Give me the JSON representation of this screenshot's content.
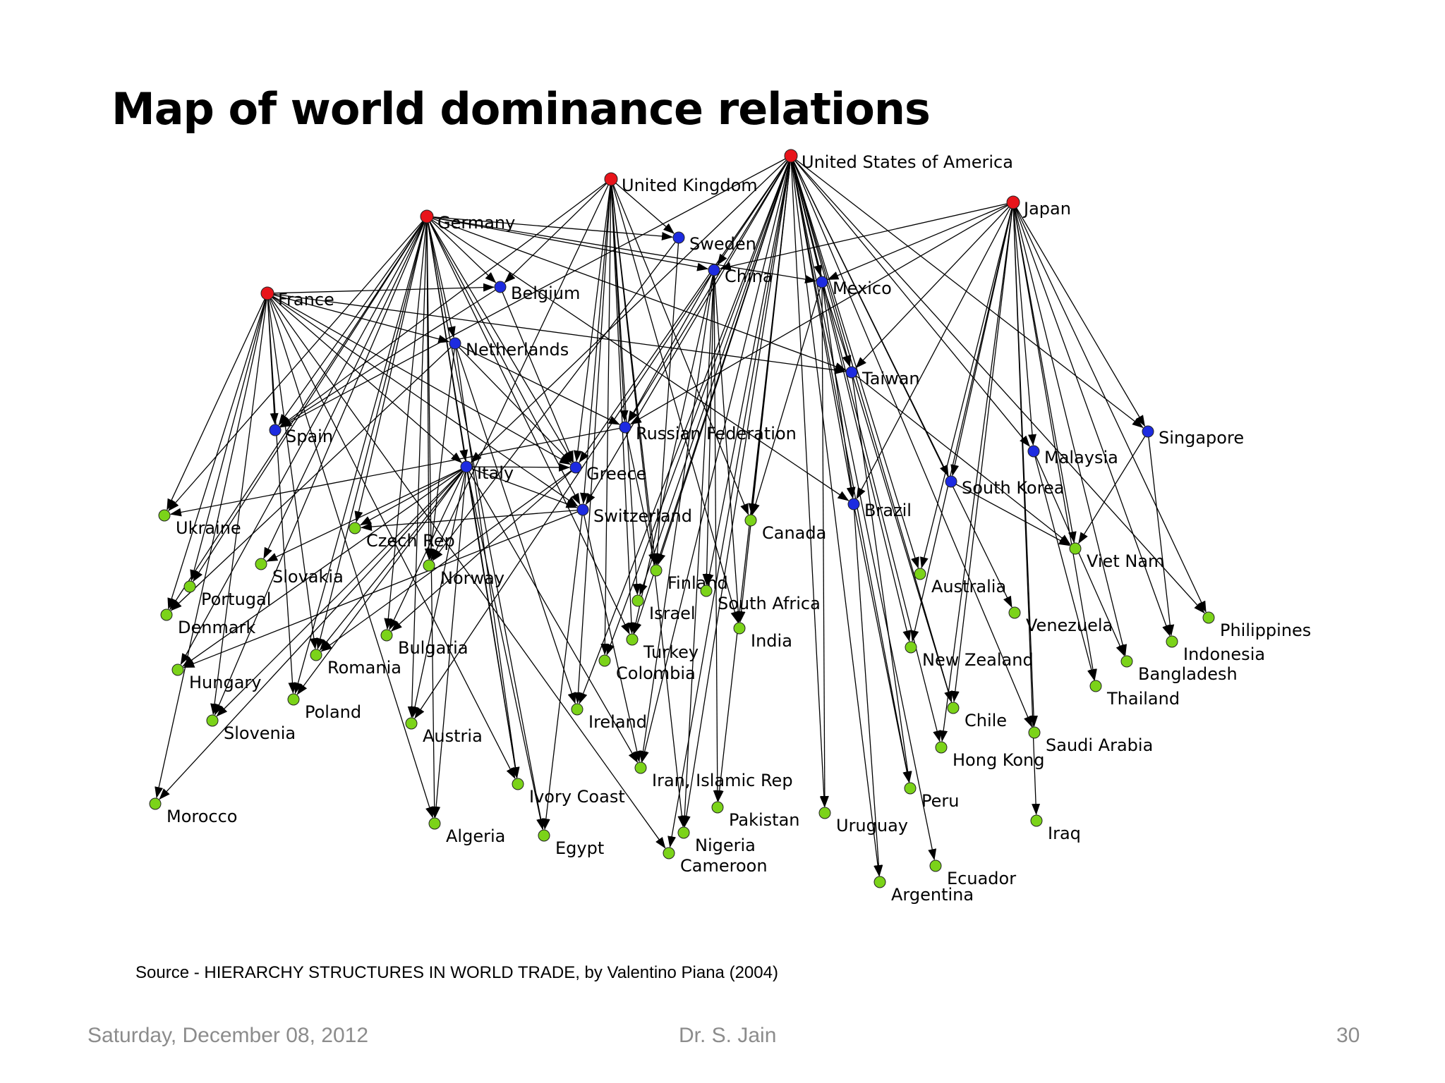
{
  "slide": {
    "title": "Map of world dominance relations",
    "source": "Source - HIERARCHY STRUCTURES IN WORLD TRADE, by Valentino Piana (2004)",
    "footer_date": "Saturday, December 08, 2012",
    "footer_author": "Dr. S. Jain",
    "footer_page": "30"
  },
  "colors": {
    "top_tier": "#e8141a",
    "middle_tier": "#1d2be0",
    "lower_tier": "#7bd319",
    "edge": "#000000"
  },
  "nodes": [
    {
      "id": "United States of America",
      "tier": "top"
    },
    {
      "id": "United Kingdom",
      "tier": "top"
    },
    {
      "id": "Germany",
      "tier": "top"
    },
    {
      "id": "Japan",
      "tier": "top"
    },
    {
      "id": "France",
      "tier": "top"
    },
    {
      "id": "Sweden",
      "tier": "middle"
    },
    {
      "id": "China",
      "tier": "middle"
    },
    {
      "id": "Mexico",
      "tier": "middle"
    },
    {
      "id": "Belgium",
      "tier": "middle"
    },
    {
      "id": "Netherlands",
      "tier": "middle"
    },
    {
      "id": "Taiwan",
      "tier": "middle"
    },
    {
      "id": "Spain",
      "tier": "middle"
    },
    {
      "id": "Russian Federation",
      "tier": "middle"
    },
    {
      "id": "Singapore",
      "tier": "middle"
    },
    {
      "id": "Malaysia",
      "tier": "middle"
    },
    {
      "id": "Italy",
      "tier": "middle"
    },
    {
      "id": "Greece",
      "tier": "middle"
    },
    {
      "id": "South Korea",
      "tier": "middle"
    },
    {
      "id": "Brazil",
      "tier": "middle"
    },
    {
      "id": "Switzerland",
      "tier": "middle"
    },
    {
      "id": "Ukraine",
      "tier": "lower"
    },
    {
      "id": "Czech Rep",
      "tier": "lower"
    },
    {
      "id": "Canada",
      "tier": "lower"
    },
    {
      "id": "Slovakia",
      "tier": "lower"
    },
    {
      "id": "Norway",
      "tier": "lower"
    },
    {
      "id": "Viet Nam",
      "tier": "lower"
    },
    {
      "id": "Portugal",
      "tier": "lower"
    },
    {
      "id": "Finland",
      "tier": "lower"
    },
    {
      "id": "Australia",
      "tier": "lower"
    },
    {
      "id": "Israel",
      "tier": "lower"
    },
    {
      "id": "South Africa",
      "tier": "lower"
    },
    {
      "id": "Denmark",
      "tier": "lower"
    },
    {
      "id": "Venezuela",
      "tier": "lower"
    },
    {
      "id": "Philippines",
      "tier": "lower"
    },
    {
      "id": "Bulgaria",
      "tier": "lower"
    },
    {
      "id": "India",
      "tier": "lower"
    },
    {
      "id": "Turkey",
      "tier": "lower"
    },
    {
      "id": "Indonesia",
      "tier": "lower"
    },
    {
      "id": "Romania",
      "tier": "lower"
    },
    {
      "id": "New Zealand",
      "tier": "lower"
    },
    {
      "id": "Colombia",
      "tier": "lower"
    },
    {
      "id": "Bangladesh",
      "tier": "lower"
    },
    {
      "id": "Hungary",
      "tier": "lower"
    },
    {
      "id": "Thailand",
      "tier": "lower"
    },
    {
      "id": "Poland",
      "tier": "lower"
    },
    {
      "id": "Chile",
      "tier": "lower"
    },
    {
      "id": "Ireland",
      "tier": "lower"
    },
    {
      "id": "Slovenia",
      "tier": "lower"
    },
    {
      "id": "Austria",
      "tier": "lower"
    },
    {
      "id": "Saudi Arabia",
      "tier": "lower"
    },
    {
      "id": "Hong Kong",
      "tier": "lower"
    },
    {
      "id": "Iran, Islamic Rep",
      "tier": "lower"
    },
    {
      "id": "Ivory Coast",
      "tier": "lower"
    },
    {
      "id": "Peru",
      "tier": "lower"
    },
    {
      "id": "Morocco",
      "tier": "lower"
    },
    {
      "id": "Pakistan",
      "tier": "lower"
    },
    {
      "id": "Uruguay",
      "tier": "lower"
    },
    {
      "id": "Iraq",
      "tier": "lower"
    },
    {
      "id": "Algeria",
      "tier": "lower"
    },
    {
      "id": "Egypt",
      "tier": "lower"
    },
    {
      "id": "Nigeria",
      "tier": "lower"
    },
    {
      "id": "Cameroon",
      "tier": "lower"
    },
    {
      "id": "Ecuador",
      "tier": "lower"
    },
    {
      "id": "Argentina",
      "tier": "lower"
    }
  ],
  "edges": [
    [
      "United States of America",
      "China"
    ],
    [
      "United States of America",
      "Mexico"
    ],
    [
      "United States of America",
      "Taiwan"
    ],
    [
      "United States of America",
      "Russian Federation"
    ],
    [
      "United States of America",
      "Greece"
    ],
    [
      "United States of America",
      "Switzerland"
    ],
    [
      "United States of America",
      "Brazil"
    ],
    [
      "United States of America",
      "South Korea"
    ],
    [
      "United States of America",
      "Malaysia"
    ],
    [
      "United States of America",
      "Singapore"
    ],
    [
      "United States of America",
      "Canada"
    ],
    [
      "United States of America",
      "Finland"
    ],
    [
      "United States of America",
      "Israel"
    ],
    [
      "United States of America",
      "Turkey"
    ],
    [
      "United States of America",
      "Colombia"
    ],
    [
      "United States of America",
      "Australia"
    ],
    [
      "United States of America",
      "New Zealand"
    ],
    [
      "United States of America",
      "Chile"
    ],
    [
      "United States of America",
      "Peru"
    ],
    [
      "United States of America",
      "Venezuela"
    ],
    [
      "United States of America",
      "Ireland"
    ],
    [
      "United States of America",
      "Uruguay"
    ],
    [
      "United States of America",
      "Argentina"
    ],
    [
      "United States of America",
      "Ecuador"
    ],
    [
      "United States of America",
      "Nigeria"
    ],
    [
      "United States of America",
      "Cameroon"
    ],
    [
      "United States of America",
      "Pakistan"
    ],
    [
      "United States of America",
      "Iran, Islamic Rep"
    ],
    [
      "United States of America",
      "Saudi Arabia"
    ],
    [
      "United States of America",
      "Hong Kong"
    ],
    [
      "United States of America",
      "South Africa"
    ],
    [
      "United States of America",
      "India"
    ],
    [
      "United States of America",
      "Philippines"
    ],
    [
      "United States of America",
      "Italy"
    ],
    [
      "United States of America",
      "Spain"
    ],
    [
      "United Kingdom",
      "Sweden"
    ],
    [
      "United Kingdom",
      "Belgium"
    ],
    [
      "United Kingdom",
      "Russian Federation"
    ],
    [
      "United Kingdom",
      "Greece"
    ],
    [
      "United Kingdom",
      "Switzerland"
    ],
    [
      "United Kingdom",
      "Finland"
    ],
    [
      "United Kingdom",
      "Israel"
    ],
    [
      "United Kingdom",
      "Ireland"
    ],
    [
      "United Kingdom",
      "Turkey"
    ],
    [
      "United Kingdom",
      "Colombia"
    ],
    [
      "United Kingdom",
      "Nigeria"
    ],
    [
      "United Kingdom",
      "Spain"
    ],
    [
      "United Kingdom",
      "Norway"
    ],
    [
      "United Kingdom",
      "Canada"
    ],
    [
      "United Kingdom",
      "India"
    ],
    [
      "Germany",
      "Sweden"
    ],
    [
      "Germany",
      "China"
    ],
    [
      "Germany",
      "Mexico"
    ],
    [
      "Germany",
      "Belgium"
    ],
    [
      "Germany",
      "Netherlands"
    ],
    [
      "Germany",
      "Spain"
    ],
    [
      "Germany",
      "Italy"
    ],
    [
      "Germany",
      "Greece"
    ],
    [
      "Germany",
      "Switzerland"
    ],
    [
      "Germany",
      "Czech Rep"
    ],
    [
      "Germany",
      "Slovakia"
    ],
    [
      "Germany",
      "Norway"
    ],
    [
      "Germany",
      "Portugal"
    ],
    [
      "Germany",
      "Denmark"
    ],
    [
      "Germany",
      "Bulgaria"
    ],
    [
      "Germany",
      "Romania"
    ],
    [
      "Germany",
      "Hungary"
    ],
    [
      "Germany",
      "Poland"
    ],
    [
      "Germany",
      "Slovenia"
    ],
    [
      "Germany",
      "Austria"
    ],
    [
      "Germany",
      "Algeria"
    ],
    [
      "Germany",
      "Egypt"
    ],
    [
      "Germany",
      "Ivory Coast"
    ],
    [
      "Germany",
      "Turkey"
    ],
    [
      "Germany",
      "Taiwan"
    ],
    [
      "Germany",
      "Ukraine"
    ],
    [
      "Germany",
      "Brazil"
    ],
    [
      "Japan",
      "China"
    ],
    [
      "Japan",
      "Mexico"
    ],
    [
      "Japan",
      "Taiwan"
    ],
    [
      "Japan",
      "Malaysia"
    ],
    [
      "Japan",
      "South Korea"
    ],
    [
      "Japan",
      "Singapore"
    ],
    [
      "Japan",
      "Viet Nam"
    ],
    [
      "Japan",
      "Philippines"
    ],
    [
      "Japan",
      "Indonesia"
    ],
    [
      "Japan",
      "Thailand"
    ],
    [
      "Japan",
      "Australia"
    ],
    [
      "Japan",
      "New Zealand"
    ],
    [
      "Japan",
      "Chile"
    ],
    [
      "Japan",
      "Saudi Arabia"
    ],
    [
      "Japan",
      "Iraq"
    ],
    [
      "Japan",
      "Bangladesh"
    ],
    [
      "Japan",
      "Hong Kong"
    ],
    [
      "Japan",
      "Russian Federation"
    ],
    [
      "Japan",
      "Brazil"
    ],
    [
      "France",
      "Spain"
    ],
    [
      "France",
      "Italy"
    ],
    [
      "France",
      "Belgium"
    ],
    [
      "France",
      "Netherlands"
    ],
    [
      "France",
      "Greece"
    ],
    [
      "France",
      "Switzerland"
    ],
    [
      "France",
      "Ukraine"
    ],
    [
      "France",
      "Portugal"
    ],
    [
      "France",
      "Denmark"
    ],
    [
      "France",
      "Morocco"
    ],
    [
      "France",
      "Algeria"
    ],
    [
      "France",
      "Ivory Coast"
    ],
    [
      "France",
      "Poland"
    ],
    [
      "France",
      "Romania"
    ],
    [
      "France",
      "Cameroon"
    ],
    [
      "France",
      "Taiwan"
    ],
    [
      "France",
      "Slovenia"
    ],
    [
      "Netherlands",
      "Greece"
    ],
    [
      "Netherlands",
      "Russian Federation"
    ],
    [
      "Netherlands",
      "Ivory Coast"
    ],
    [
      "Netherlands",
      "Ireland"
    ],
    [
      "Netherlands",
      "Norway"
    ],
    [
      "Netherlands",
      "Denmark"
    ],
    [
      "Italy",
      "Greece"
    ],
    [
      "Italy",
      "Switzerland"
    ],
    [
      "Italy",
      "Czech Rep"
    ],
    [
      "Italy",
      "Slovakia"
    ],
    [
      "Italy",
      "Romania"
    ],
    [
      "Italy",
      "Bulgaria"
    ],
    [
      "Italy",
      "Austria"
    ],
    [
      "Italy",
      "Poland"
    ],
    [
      "Italy",
      "Slovenia"
    ],
    [
      "Italy",
      "Hungary"
    ],
    [
      "Italy",
      "Algeria"
    ],
    [
      "Italy",
      "Egypt"
    ],
    [
      "Italy",
      "Iran, Islamic Rep"
    ],
    [
      "Italy",
      "Ivory Coast"
    ],
    [
      "Italy",
      "Morocco"
    ],
    [
      "China",
      "Russian Federation"
    ],
    [
      "China",
      "Iran, Islamic Rep"
    ],
    [
      "China",
      "Pakistan"
    ],
    [
      "China",
      "India"
    ],
    [
      "China",
      "South Africa"
    ],
    [
      "China",
      "Nigeria"
    ],
    [
      "China",
      "Austria"
    ],
    [
      "China",
      "Turkey"
    ],
    [
      "Mexico",
      "Taiwan"
    ],
    [
      "Mexico",
      "Brazil"
    ],
    [
      "Mexico",
      "Canada"
    ],
    [
      "Mexico",
      "Uruguay"
    ],
    [
      "Taiwan",
      "Chile"
    ],
    [
      "Taiwan",
      "Peru"
    ],
    [
      "Taiwan",
      "Viet Nam"
    ],
    [
      "Belgium",
      "Spain"
    ],
    [
      "Belgium",
      "Greece"
    ],
    [
      "Switzerland",
      "Czech Rep"
    ],
    [
      "Switzerland",
      "Hungary"
    ],
    [
      "Switzerland",
      "Egypt"
    ],
    [
      "Switzerland",
      "Iran, Islamic Rep"
    ],
    [
      "Sweden",
      "Finland"
    ],
    [
      "Sweden",
      "Norway"
    ],
    [
      "Singapore",
      "Indonesia"
    ],
    [
      "Singapore",
      "Viet Nam"
    ],
    [
      "Malaysia",
      "Thailand"
    ],
    [
      "Malaysia",
      "Bangladesh"
    ],
    [
      "South Korea",
      "Viet Nam"
    ],
    [
      "Brazil",
      "Argentina"
    ],
    [
      "Brazil",
      "Peru"
    ],
    [
      "Russian Federation",
      "Ukraine"
    ],
    [
      "Russian Federation",
      "Finland"
    ],
    [
      "Greece",
      "Bulgaria"
    ],
    [
      "Greece",
      "Romania"
    ]
  ]
}
